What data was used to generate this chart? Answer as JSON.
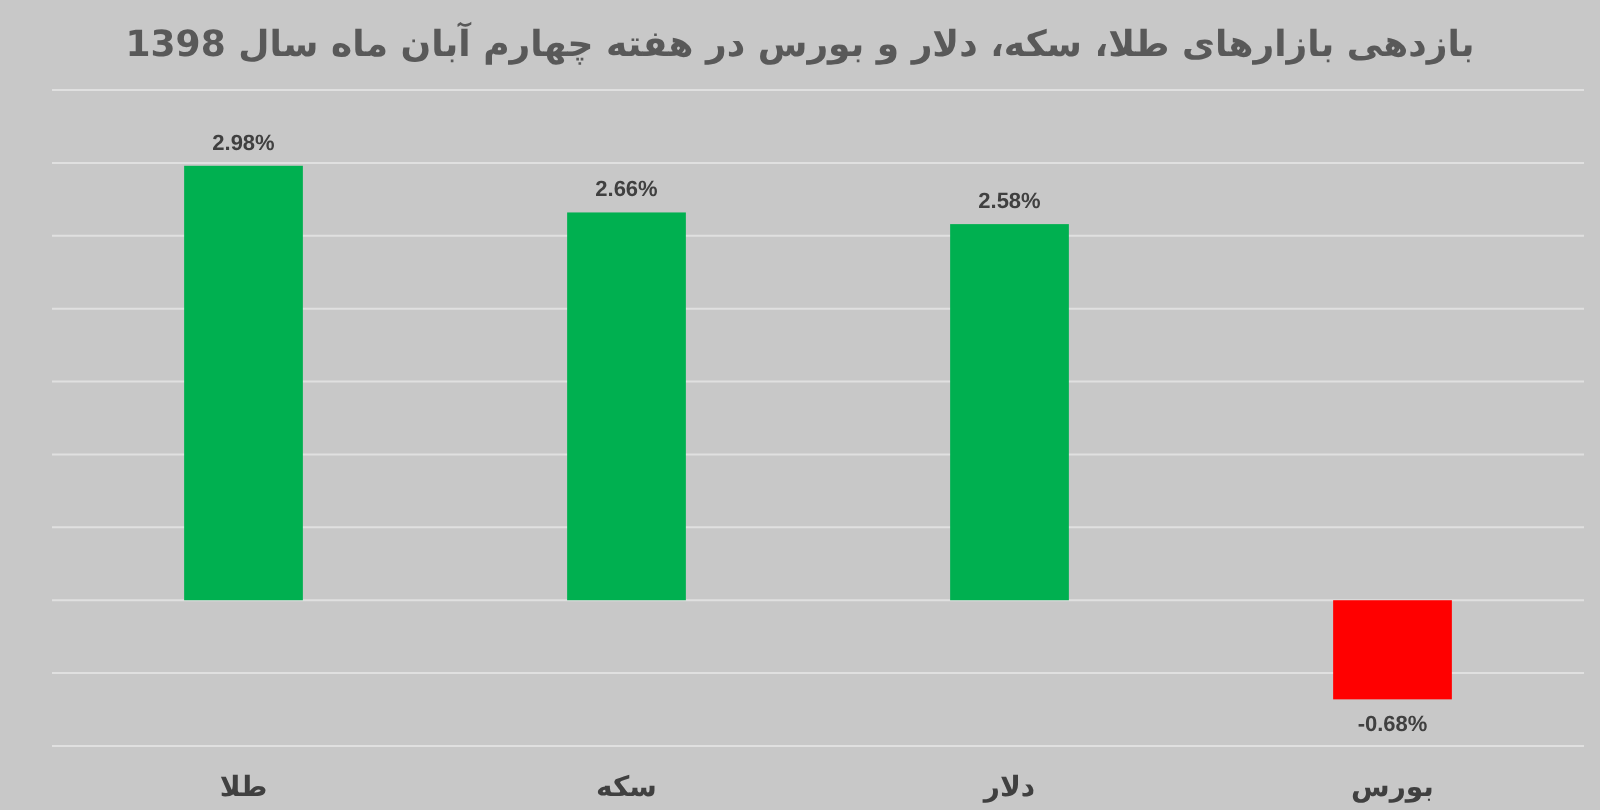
{
  "chart_data": {
    "type": "bar",
    "title": "بازدهی بازارهای طلا، سکه، دلار و بورس در هفته چهارم آبان ماه سال 1398",
    "categories": [
      "طلا",
      "سکه",
      "دلار",
      "بورس"
    ],
    "values": [
      2.98,
      2.66,
      2.58,
      -0.68
    ],
    "colors": [
      "#00b050",
      "#00b050",
      "#00b050",
      "#ff0000"
    ],
    "value_labels": [
      "2.98%",
      "2.66%",
      "2.58%",
      "-0.68%"
    ],
    "ylim": [
      -1,
      3.5
    ],
    "yticks": [
      {
        "value": -1,
        "label": null
      },
      {
        "value": -0.5,
        "label": null
      },
      {
        "value": 0,
        "label": null
      },
      {
        "value": 0.5,
        "label": null
      },
      {
        "value": 1,
        "label": null
      },
      {
        "value": 1.5,
        "label": null
      },
      {
        "value": 2,
        "label": null
      },
      {
        "value": 2.5,
        "label": null
      },
      {
        "value": 3,
        "label": null
      },
      {
        "value": 3.5,
        "label": null
      }
    ],
    "grid": "y"
  }
}
